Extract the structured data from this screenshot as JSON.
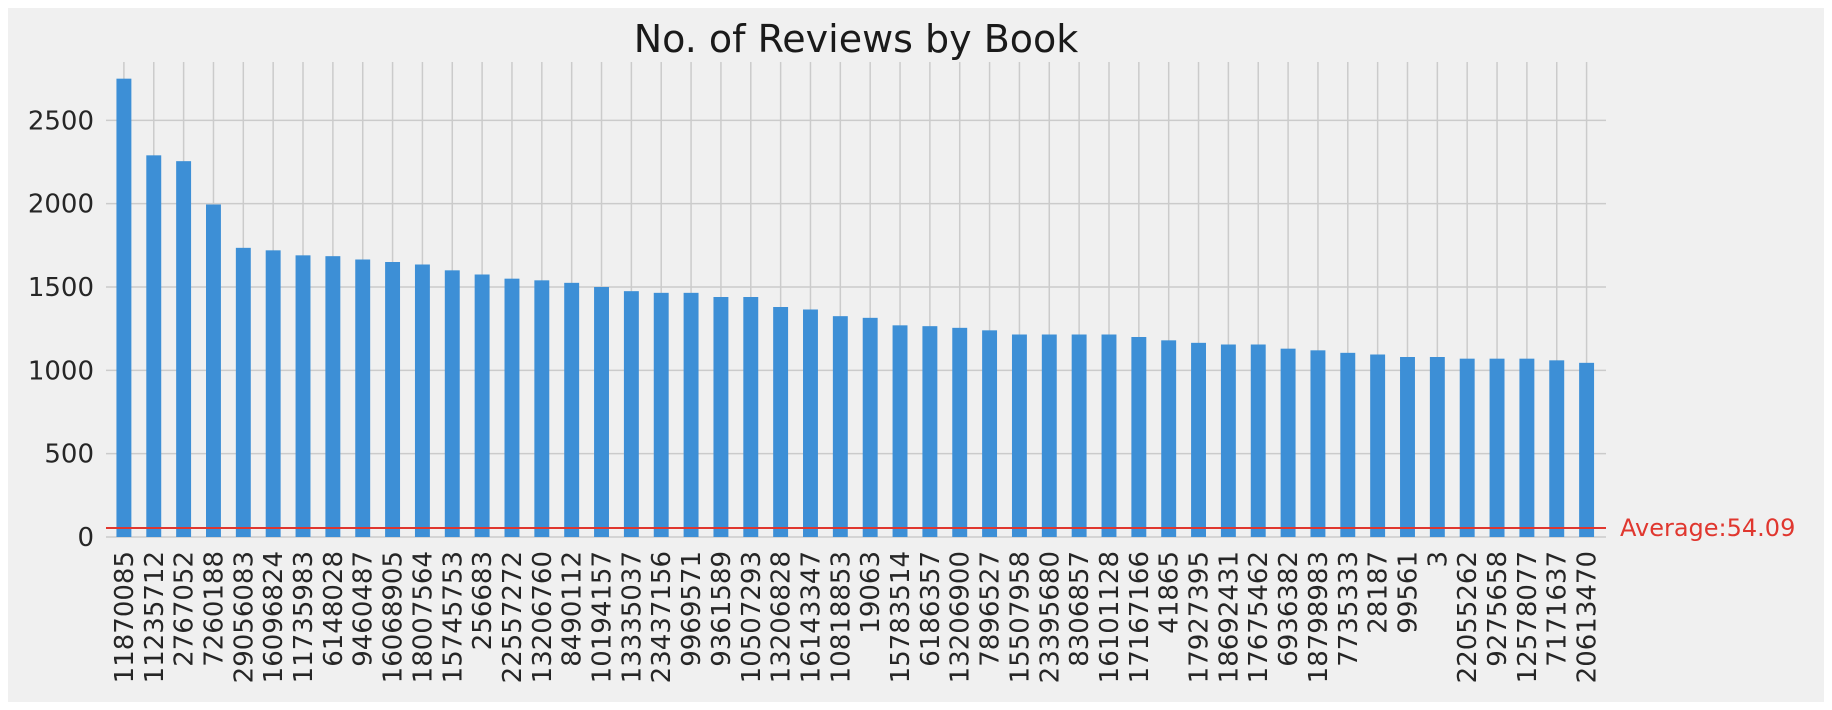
{
  "chart_data": {
    "type": "bar",
    "title": "No. of Reviews by Book",
    "xlabel": "",
    "ylabel": "",
    "ylim": [
      0,
      2850
    ],
    "yticks": [
      0,
      500,
      1000,
      1500,
      2000,
      2500
    ],
    "grid": true,
    "bar_color": "#3d8fd6",
    "average_line": {
      "label": "Average:54.09",
      "value": 54.09,
      "color": "#e0372f"
    },
    "categories": [
      "11870085",
      "11235712",
      "2767052",
      "7260188",
      "29056083",
      "16096824",
      "11735983",
      "6148028",
      "9460487",
      "16068905",
      "18007564",
      "15745753",
      "256683",
      "22557272",
      "13206760",
      "8490112",
      "10194157",
      "13335037",
      "23437156",
      "9969571",
      "9361589",
      "10507293",
      "13206828",
      "16143347",
      "10818853",
      "19063",
      "15783514",
      "6186357",
      "13206900",
      "7896527",
      "15507958",
      "23395680",
      "8306857",
      "16101128",
      "17167166",
      "41865",
      "17927395",
      "18692431",
      "17675462",
      "6936382",
      "18798983",
      "7735333",
      "28187",
      "99561",
      "3",
      "22055262",
      "9275658",
      "12578077",
      "7171637",
      "20613470"
    ],
    "values": [
      2750,
      2290,
      2255,
      1995,
      1735,
      1720,
      1690,
      1685,
      1665,
      1650,
      1635,
      1600,
      1575,
      1550,
      1540,
      1525,
      1500,
      1475,
      1465,
      1465,
      1440,
      1440,
      1380,
      1365,
      1325,
      1315,
      1270,
      1265,
      1255,
      1240,
      1215,
      1215,
      1215,
      1215,
      1200,
      1180,
      1165,
      1155,
      1155,
      1130,
      1120,
      1105,
      1095,
      1080,
      1080,
      1070,
      1070,
      1070,
      1060,
      1045
    ]
  }
}
